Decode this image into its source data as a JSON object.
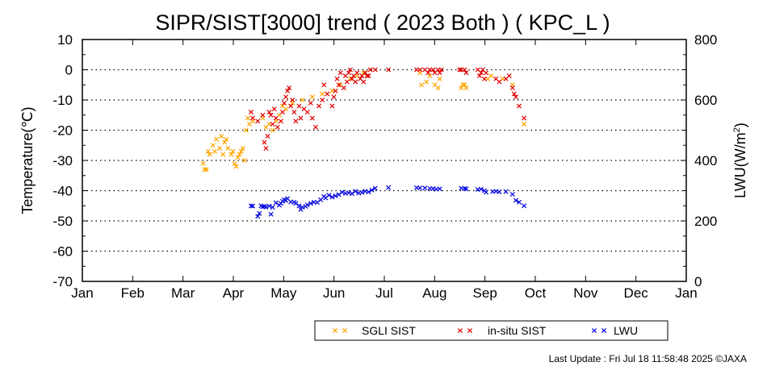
{
  "chart_data": {
    "type": "scatter",
    "title": "SIPR/SIST[3000] trend ( 2023 Both ) ( KPC_L )",
    "ylabel": "Temperature(℃)",
    "y2label": "LWU(W/m",
    "y2label_sup": "2",
    "y2label_end": ")",
    "ylim": [
      -70,
      10
    ],
    "y2lim": [
      0,
      800
    ],
    "yticks": [
      "10",
      "0",
      "-10",
      "-20",
      "-30",
      "-40",
      "-50",
      "-60",
      "-70"
    ],
    "y2ticks": [
      "800",
      "600",
      "400",
      "200",
      "0"
    ],
    "months": [
      "Jan",
      "Feb",
      "Mar",
      "Apr",
      "May",
      "Jun",
      "Jul",
      "Aug",
      "Sep",
      "Oct",
      "Nov",
      "Dec",
      "Jan"
    ],
    "grid": "horizontal dotted",
    "legend_placement": "bottom",
    "series": [
      {
        "name": "SGLI SIST",
        "color": "#ffa500",
        "axis": "left",
        "points": [
          [
            "2023-03-15",
            -31
          ],
          [
            "2023-03-16",
            -33
          ],
          [
            "2023-03-17",
            -33
          ],
          [
            "2023-03-18",
            -27
          ],
          [
            "2023-03-19",
            -28
          ],
          [
            "2023-03-21",
            -25
          ],
          [
            "2023-03-22",
            -27
          ],
          [
            "2023-03-23",
            -23
          ],
          [
            "2023-03-25",
            -26
          ],
          [
            "2023-03-26",
            -22
          ],
          [
            "2023-03-27",
            -28
          ],
          [
            "2023-03-28",
            -24
          ],
          [
            "2023-03-29",
            -23
          ],
          [
            "2023-03-30",
            -26
          ],
          [
            "2023-04-01",
            -28
          ],
          [
            "2023-04-02",
            -27
          ],
          [
            "2023-04-03",
            -31
          ],
          [
            "2023-04-04",
            -32
          ],
          [
            "2023-04-05",
            -29
          ],
          [
            "2023-04-06",
            -28
          ],
          [
            "2023-04-07",
            -27
          ],
          [
            "2023-04-08",
            -26
          ],
          [
            "2023-04-09",
            -30
          ],
          [
            "2023-04-10",
            -20
          ],
          [
            "2023-04-11",
            -16
          ],
          [
            "2023-04-12",
            -18
          ],
          [
            "2023-04-14",
            -17
          ],
          [
            "2023-04-20",
            -16
          ],
          [
            "2023-04-22",
            -19
          ],
          [
            "2023-04-24",
            -18
          ],
          [
            "2023-04-26",
            -20
          ],
          [
            "2023-04-28",
            -17
          ],
          [
            "2023-04-30",
            -15
          ],
          [
            "2023-05-02",
            -12
          ],
          [
            "2023-05-04",
            -13
          ],
          [
            "2023-05-08",
            -11
          ],
          [
            "2023-05-14",
            -10
          ],
          [
            "2023-05-20",
            -9
          ],
          [
            "2023-05-26",
            -8
          ],
          [
            "2023-06-01",
            -7
          ],
          [
            "2023-06-06",
            -5
          ],
          [
            "2023-06-12",
            -3
          ],
          [
            "2023-06-16",
            -2
          ],
          [
            "2023-06-20",
            -1
          ],
          [
            "2023-06-24",
            0
          ],
          [
            "2023-07-24",
            -1
          ],
          [
            "2023-07-25",
            -5
          ],
          [
            "2023-07-28",
            -4
          ],
          [
            "2023-07-30",
            -2
          ],
          [
            "2023-08-02",
            -5
          ],
          [
            "2023-08-04",
            -6
          ],
          [
            "2023-08-05",
            -3
          ],
          [
            "2023-08-18",
            -6
          ],
          [
            "2023-08-19",
            -5
          ],
          [
            "2023-08-20",
            -5
          ],
          [
            "2023-08-21",
            -6
          ],
          [
            "2023-09-03",
            -3
          ],
          [
            "2023-09-05",
            -2
          ],
          [
            "2023-09-12",
            -3
          ],
          [
            "2023-09-18",
            -5
          ],
          [
            "2023-09-25",
            -18
          ]
        ]
      },
      {
        "name": "in-situ SIST",
        "color": "#e00000",
        "axis": "left",
        "points": [
          [
            "2023-04-13",
            -14
          ],
          [
            "2023-04-14",
            -16
          ],
          [
            "2023-04-17",
            -17
          ],
          [
            "2023-04-20",
            -15
          ],
          [
            "2023-04-21",
            -24
          ],
          [
            "2023-04-22",
            -26
          ],
          [
            "2023-04-23",
            -22
          ],
          [
            "2023-04-24",
            -14
          ],
          [
            "2023-04-25",
            -15
          ],
          [
            "2023-04-26",
            -18
          ],
          [
            "2023-04-27",
            -13
          ],
          [
            "2023-04-28",
            -16
          ],
          [
            "2023-04-29",
            -19
          ],
          [
            "2023-05-01",
            -17
          ],
          [
            "2023-05-02",
            -14
          ],
          [
            "2023-05-03",
            -11
          ],
          [
            "2023-05-04",
            -9
          ],
          [
            "2023-05-05",
            -7
          ],
          [
            "2023-05-06",
            -6
          ],
          [
            "2023-05-07",
            -12
          ],
          [
            "2023-05-08",
            -10
          ],
          [
            "2023-05-09",
            -14
          ],
          [
            "2023-05-10",
            -17
          ],
          [
            "2023-05-12",
            -12
          ],
          [
            "2023-05-13",
            -16
          ],
          [
            "2023-05-15",
            -13
          ],
          [
            "2023-05-17",
            -14
          ],
          [
            "2023-05-19",
            -11
          ],
          [
            "2023-05-20",
            -16
          ],
          [
            "2023-05-22",
            -19
          ],
          [
            "2023-05-24",
            -12
          ],
          [
            "2023-05-26",
            -10
          ],
          [
            "2023-05-27",
            -5
          ],
          [
            "2023-05-29",
            -8
          ],
          [
            "2023-06-01",
            -12
          ],
          [
            "2023-06-02",
            -9
          ],
          [
            "2023-06-03",
            -7
          ],
          [
            "2023-06-04",
            -3
          ],
          [
            "2023-06-05",
            -5
          ],
          [
            "2023-06-06",
            -1
          ],
          [
            "2023-06-08",
            -6
          ],
          [
            "2023-06-09",
            -2
          ],
          [
            "2023-06-10",
            -4
          ],
          [
            "2023-06-11",
            -1
          ],
          [
            "2023-06-12",
            0
          ],
          [
            "2023-06-13",
            -3
          ],
          [
            "2023-06-14",
            -2
          ],
          [
            "2023-06-15",
            -4
          ],
          [
            "2023-06-16",
            -1
          ],
          [
            "2023-06-18",
            -3
          ],
          [
            "2023-06-19",
            -2
          ],
          [
            "2023-06-20",
            -4
          ],
          [
            "2023-06-21",
            -1
          ],
          [
            "2023-06-22",
            -2
          ],
          [
            "2023-06-23",
            -2
          ],
          [
            "2023-06-24",
            0
          ],
          [
            "2023-06-27",
            0
          ],
          [
            "2023-07-05",
            0
          ],
          [
            "2023-07-22",
            0
          ],
          [
            "2023-07-24",
            0
          ],
          [
            "2023-07-27",
            0
          ],
          [
            "2023-07-29",
            -1
          ],
          [
            "2023-07-30",
            0
          ],
          [
            "2023-08-01",
            0
          ],
          [
            "2023-08-02",
            -1
          ],
          [
            "2023-08-04",
            0
          ],
          [
            "2023-08-05",
            -1
          ],
          [
            "2023-08-06",
            0
          ],
          [
            "2023-08-17",
            0
          ],
          [
            "2023-08-18",
            0
          ],
          [
            "2023-08-20",
            0
          ],
          [
            "2023-08-21",
            -1
          ],
          [
            "2023-08-28",
            0
          ],
          [
            "2023-08-29",
            -2
          ],
          [
            "2023-08-30",
            -1
          ],
          [
            "2023-08-31",
            0
          ],
          [
            "2023-09-01",
            -3
          ],
          [
            "2023-09-02",
            -1
          ],
          [
            "2023-09-08",
            -3
          ],
          [
            "2023-09-10",
            -4
          ],
          [
            "2023-09-14",
            -3
          ],
          [
            "2023-09-16",
            -2
          ],
          [
            "2023-09-18",
            -6
          ],
          [
            "2023-09-19",
            -8
          ],
          [
            "2023-09-20",
            -9
          ],
          [
            "2023-09-22",
            -12
          ],
          [
            "2023-09-25",
            -16
          ]
        ]
      },
      {
        "name": "LWU",
        "color": "#0000e0",
        "axis": "right",
        "points": [
          [
            "2023-04-13",
            250
          ],
          [
            "2023-04-14",
            249
          ],
          [
            "2023-04-17",
            215
          ],
          [
            "2023-04-18",
            225
          ],
          [
            "2023-04-19",
            250
          ],
          [
            "2023-04-20",
            247
          ],
          [
            "2023-04-21",
            248
          ],
          [
            "2023-04-22",
            246
          ],
          [
            "2023-04-24",
            249
          ],
          [
            "2023-04-25",
            222
          ],
          [
            "2023-04-26",
            245
          ],
          [
            "2023-04-28",
            260
          ],
          [
            "2023-04-30",
            252
          ],
          [
            "2023-05-01",
            258
          ],
          [
            "2023-05-02",
            265
          ],
          [
            "2023-05-03",
            270
          ],
          [
            "2023-05-04",
            268
          ],
          [
            "2023-05-05",
            274
          ],
          [
            "2023-05-07",
            263
          ],
          [
            "2023-05-09",
            262
          ],
          [
            "2023-05-10",
            258
          ],
          [
            "2023-05-12",
            250
          ],
          [
            "2023-05-13",
            238
          ],
          [
            "2023-05-14",
            245
          ],
          [
            "2023-05-16",
            248
          ],
          [
            "2023-05-17",
            253
          ],
          [
            "2023-05-19",
            258
          ],
          [
            "2023-05-21",
            262
          ],
          [
            "2023-05-23",
            261
          ],
          [
            "2023-05-25",
            270
          ],
          [
            "2023-05-27",
            281
          ],
          [
            "2023-05-28",
            276
          ],
          [
            "2023-05-30",
            285
          ],
          [
            "2023-06-01",
            279
          ],
          [
            "2023-06-03",
            283
          ],
          [
            "2023-06-05",
            287
          ],
          [
            "2023-06-07",
            295
          ],
          [
            "2023-06-09",
            291
          ],
          [
            "2023-06-11",
            293
          ],
          [
            "2023-06-13",
            290
          ],
          [
            "2023-06-15",
            298
          ],
          [
            "2023-06-17",
            292
          ],
          [
            "2023-06-19",
            294
          ],
          [
            "2023-06-21",
            298
          ],
          [
            "2023-06-23",
            296
          ],
          [
            "2023-06-25",
            302
          ],
          [
            "2023-06-27",
            308
          ],
          [
            "2023-07-05",
            310
          ],
          [
            "2023-07-22",
            310
          ],
          [
            "2023-07-24",
            309
          ],
          [
            "2023-07-27",
            309
          ],
          [
            "2023-07-30",
            307
          ],
          [
            "2023-08-01",
            307
          ],
          [
            "2023-08-03",
            305
          ],
          [
            "2023-08-05",
            306
          ],
          [
            "2023-08-18",
            308
          ],
          [
            "2023-08-20",
            307
          ],
          [
            "2023-08-21",
            306
          ],
          [
            "2023-08-28",
            304
          ],
          [
            "2023-08-30",
            305
          ],
          [
            "2023-09-01",
            300
          ],
          [
            "2023-09-02",
            295
          ],
          [
            "2023-09-06",
            297
          ],
          [
            "2023-09-08",
            298
          ],
          [
            "2023-09-10",
            296
          ],
          [
            "2023-09-14",
            297
          ],
          [
            "2023-09-18",
            288
          ],
          [
            "2023-09-20",
            268
          ],
          [
            "2023-09-22",
            262
          ],
          [
            "2023-09-25",
            250
          ]
        ]
      }
    ]
  },
  "footer": {
    "last_update": "Last Update : Fri Jul 18 11:58:48 2025  ©JAXA"
  }
}
